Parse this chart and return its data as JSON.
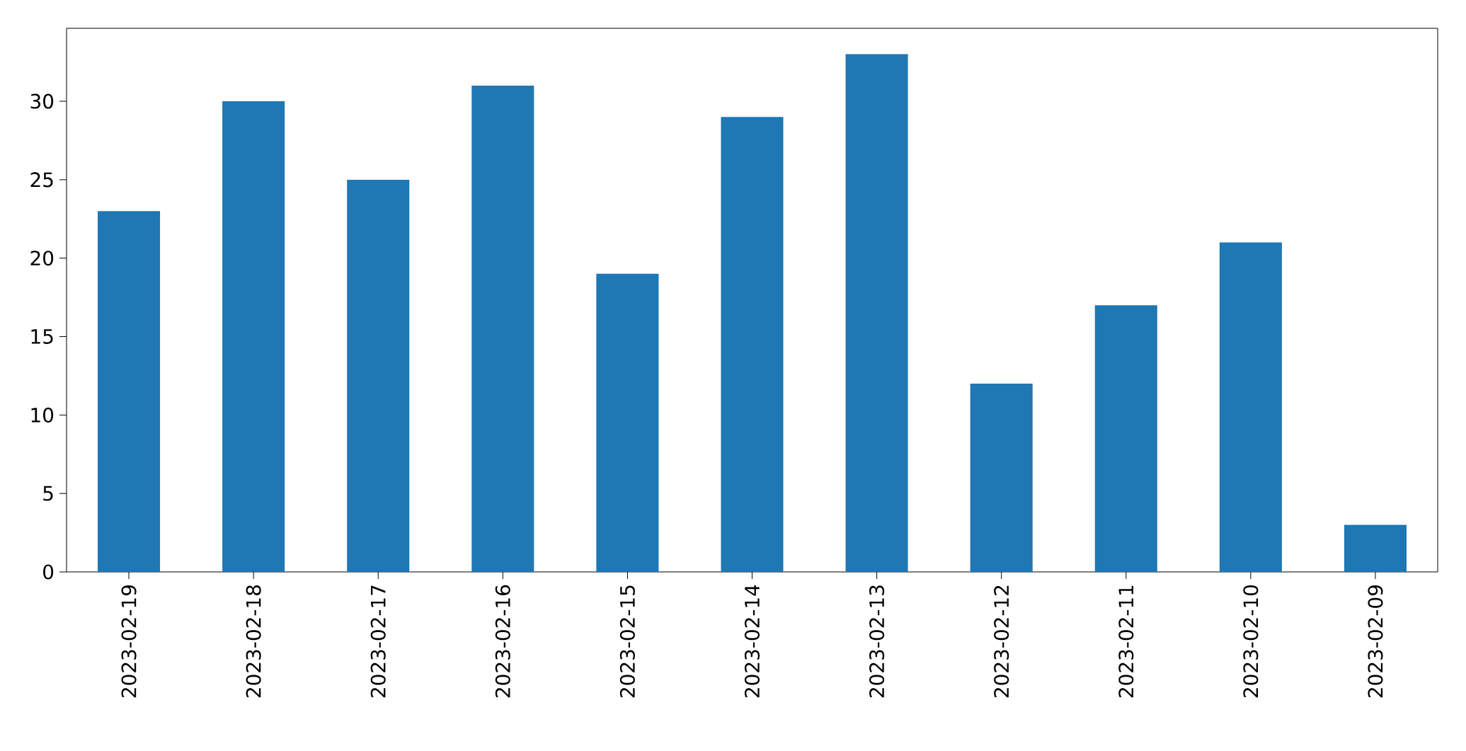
{
  "chart_data": {
    "type": "bar",
    "categories": [
      "2023-02-19",
      "2023-02-18",
      "2023-02-17",
      "2023-02-16",
      "2023-02-15",
      "2023-02-14",
      "2023-02-13",
      "2023-02-12",
      "2023-02-11",
      "2023-02-10",
      "2023-02-09"
    ],
    "values": [
      23,
      30,
      25,
      31,
      19,
      29,
      33,
      12,
      17,
      21,
      3
    ],
    "color": "#1f77b4",
    "ylim": [
      0,
      34.65
    ],
    "yticks": [
      0,
      5,
      10,
      15,
      20,
      25,
      30
    ]
  }
}
